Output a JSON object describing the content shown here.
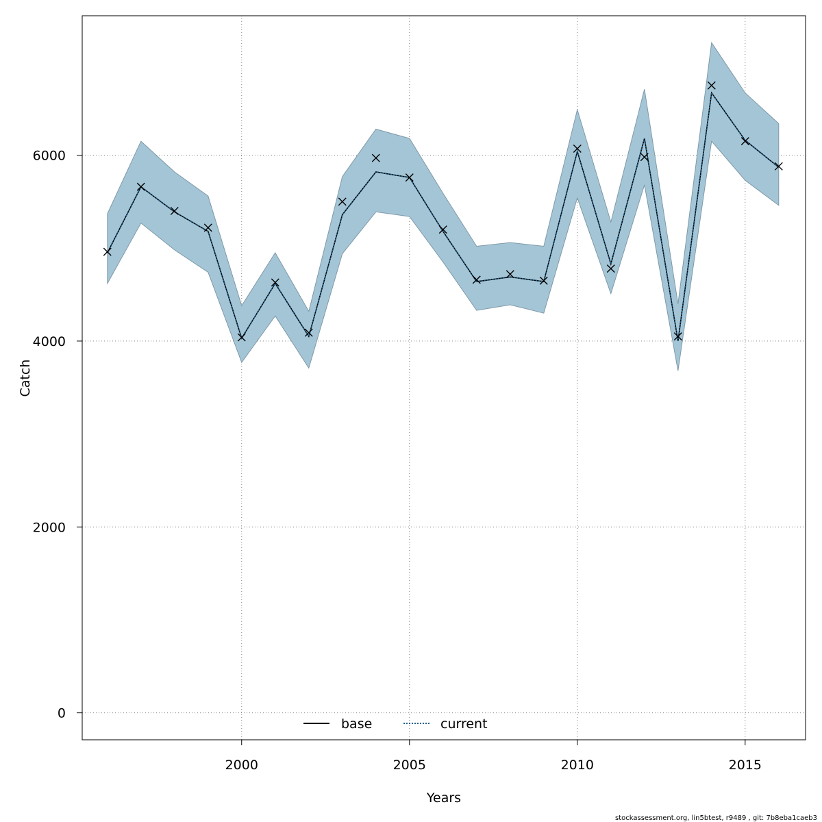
{
  "chart_data": {
    "type": "line",
    "xlabel": "Years",
    "ylabel": "Catch",
    "xlim": [
      1995.25,
      2016.8
    ],
    "ylim": [
      -290,
      7500
    ],
    "x_ticks": [
      2000,
      2005,
      2010,
      2015
    ],
    "y_ticks": [
      0,
      2000,
      4000,
      6000
    ],
    "grid": true,
    "legend_position": "bottom-center",
    "x": [
      1996,
      1997,
      1998,
      1999,
      2000,
      2001,
      2002,
      2003,
      2004,
      2005,
      2006,
      2007,
      2008,
      2009,
      2010,
      2011,
      2012,
      2013,
      2014,
      2015,
      2016
    ],
    "band": {
      "lower": [
        4620,
        5270,
        4980,
        4740,
        3770,
        4270,
        3710,
        4940,
        5390,
        5340,
        4850,
        4330,
        4390,
        4300,
        5540,
        4510,
        5680,
        3680,
        6150,
        5730,
        5460
      ],
      "upper": [
        5370,
        6150,
        5820,
        5560,
        4380,
        4950,
        4320,
        5770,
        6280,
        6180,
        5590,
        5020,
        5060,
        5020,
        6490,
        5280,
        6710,
        4400,
        7210,
        6670,
        6340
      ],
      "color": "#a4c5d6"
    },
    "series": [
      {
        "name": "base",
        "values": [
          4950,
          5660,
          5390,
          5180,
          4030,
          4620,
          4050,
          5360,
          5820,
          5760,
          5180,
          4640,
          4690,
          4640,
          6040,
          4830,
          6180,
          4000,
          6670,
          6160,
          5870
        ],
        "color": "#000000",
        "style": "solid"
      },
      {
        "name": "current",
        "values": [
          4950,
          5660,
          5390,
          5180,
          4030,
          4620,
          4050,
          5360,
          5820,
          5760,
          5180,
          4640,
          4690,
          4640,
          6040,
          4830,
          6180,
          4000,
          6670,
          6160,
          5870
        ],
        "color": "#1f5f8b",
        "style": "dotted"
      }
    ],
    "observed": {
      "marker": "x",
      "values": [
        4960,
        5660,
        5400,
        5220,
        4040,
        4630,
        4090,
        5500,
        5970,
        5760,
        5200,
        4660,
        4720,
        4650,
        6070,
        4780,
        5980,
        4050,
        6750,
        6150,
        5880
      ]
    }
  },
  "footer": "stockassessment.org, lin5btest, r9489 , git: 7b8eba1caeb3"
}
